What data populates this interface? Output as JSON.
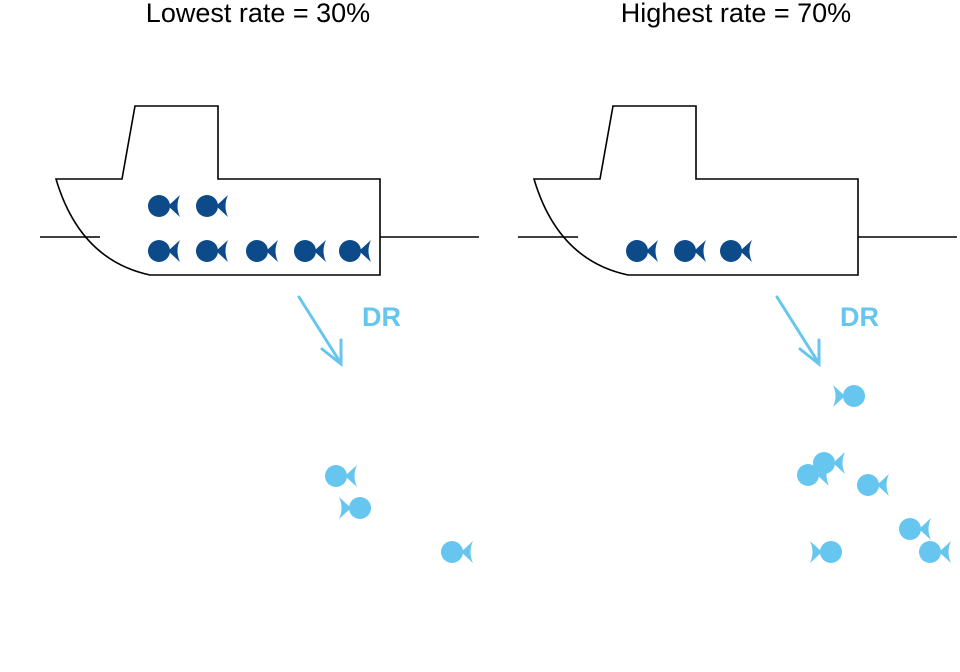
{
  "colors": {
    "retained_fish": "#0d4a8a",
    "discarded_fish": "#66c6ef",
    "outline": "#000000",
    "background": "#ffffff"
  },
  "icons": {
    "vessel": "boat-icon",
    "fish": "fish-icon",
    "discard": "arrow-icon"
  },
  "panels": [
    {
      "title": "Lowest rate = 30%",
      "retained_count": 7,
      "discarded_count": 3,
      "discard_label": "DR"
    },
    {
      "title": "Highest rate = 70%",
      "retained_count": 3,
      "discarded_count": 7,
      "discard_label": "DR"
    }
  ]
}
